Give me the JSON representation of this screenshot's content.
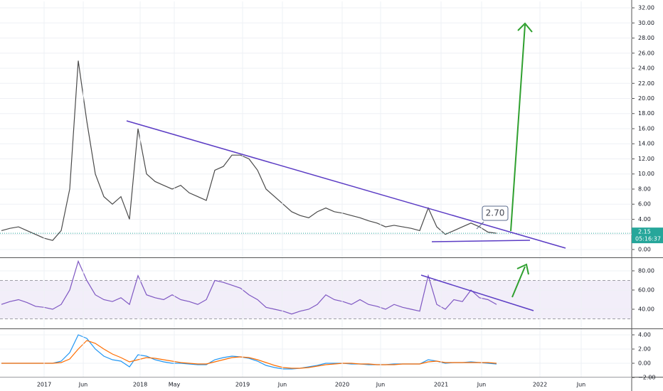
{
  "chart_data": [
    {
      "type": "line",
      "color": "#4a4a4a",
      "values": [
        2.5,
        2.8,
        3.0,
        2.5,
        2.0,
        1.5,
        1.2,
        2.5,
        8,
        25,
        17,
        10,
        7,
        6,
        7,
        4,
        16,
        10,
        9,
        8.5,
        8,
        8.5,
        7.5,
        7,
        6.5,
        10.5,
        11,
        12.5,
        12.5,
        12,
        10.5,
        8,
        7,
        6,
        5,
        4.5,
        4.2,
        5,
        5.5,
        5,
        4.8,
        4.5,
        4.2,
        3.8,
        3.5,
        3.0,
        3.2,
        3.0,
        2.8,
        2.5,
        5.5,
        3.0,
        2.0,
        2.5,
        3.0,
        3.5,
        3.0,
        2.3,
        2.15
      ],
      "ylim": [
        -1.04,
        32.85
      ],
      "yticks": [
        {
          "value": 0,
          "label": "0.00"
        },
        {
          "value": 2,
          "label": "2.00"
        },
        {
          "value": 4,
          "label": "4.00"
        },
        {
          "value": 6,
          "label": "6.00"
        },
        {
          "value": 8,
          "label": "8.00"
        },
        {
          "value": 10,
          "label": "10.00"
        },
        {
          "value": 12,
          "label": "12.00"
        },
        {
          "value": 14,
          "label": "14.00"
        },
        {
          "value": 16,
          "label": "16.00"
        },
        {
          "value": 18,
          "label": "18.00"
        },
        {
          "value": 20,
          "label": "20.00"
        },
        {
          "value": 22,
          "label": "22.00"
        },
        {
          "value": 24,
          "label": "24.00"
        },
        {
          "value": 26,
          "label": "26.00"
        },
        {
          "value": 28,
          "label": "28.00"
        },
        {
          "value": 30,
          "label": "30.00"
        },
        {
          "value": 32,
          "label": "32.00"
        }
      ],
      "grid": true,
      "last_price": {
        "value": 2.15,
        "label": "2.15"
      },
      "countdown": "05:16:37",
      "callout": "2.70"
    },
    {
      "type": "line",
      "color": "#7e57c2",
      "values": [
        45,
        48,
        50,
        47,
        43,
        42,
        40,
        45,
        60,
        90,
        70,
        55,
        50,
        48,
        52,
        45,
        75,
        55,
        52,
        50,
        55,
        50,
        48,
        45,
        50,
        70,
        68,
        65,
        62,
        55,
        50,
        42,
        40,
        38,
        35,
        38,
        40,
        45,
        55,
        50,
        48,
        45,
        50,
        45,
        43,
        40,
        45,
        42,
        40,
        38,
        75,
        45,
        40,
        50,
        48,
        60,
        52,
        50,
        45
      ],
      "ylim": [
        20,
        93.3
      ],
      "yticks": [
        {
          "value": 40,
          "label": "40.00"
        },
        {
          "value": 60,
          "label": "60.00"
        },
        {
          "value": 80,
          "label": "80.00"
        }
      ],
      "band": [
        30,
        70
      ],
      "grid": true
    },
    {
      "type": "line",
      "series": [
        {
          "color": "#2196f3",
          "values": [
            0,
            0,
            0,
            0,
            0,
            0,
            0,
            0.3,
            1.5,
            4.0,
            3.5,
            2.0,
            1.0,
            0.5,
            0.3,
            -0.5,
            1.2,
            1.0,
            0.5,
            0.2,
            0,
            0,
            -0.1,
            -0.2,
            -0.2,
            0.5,
            0.8,
            1.0,
            0.9,
            0.7,
            0.3,
            -0.3,
            -0.6,
            -0.8,
            -0.8,
            -0.7,
            -0.5,
            -0.3,
            0,
            0,
            0,
            -0.1,
            -0.1,
            -0.2,
            -0.2,
            -0.2,
            -0.1,
            -0.1,
            -0.1,
            -0.1,
            0.5,
            0.3,
            0,
            0.1,
            0.1,
            0.2,
            0.1,
            0,
            -0.1
          ]
        },
        {
          "color": "#ff6d00",
          "values": [
            0,
            0,
            0,
            0,
            0,
            0,
            0,
            0.1,
            0.6,
            2.0,
            3.2,
            2.8,
            2.0,
            1.3,
            0.8,
            0.2,
            0.5,
            0.8,
            0.7,
            0.5,
            0.3,
            0.1,
            0,
            -0.1,
            -0.1,
            0.2,
            0.5,
            0.8,
            0.9,
            0.8,
            0.5,
            0.1,
            -0.3,
            -0.6,
            -0.7,
            -0.7,
            -0.6,
            -0.4,
            -0.2,
            -0.1,
            0,
            0,
            -0.1,
            -0.1,
            -0.2,
            -0.2,
            -0.2,
            -0.1,
            -0.1,
            -0.1,
            0.2,
            0.3,
            0.1,
            0.1,
            0.1,
            0.1,
            0.1,
            0.1,
            0
          ]
        }
      ],
      "ylim": [
        -1.9,
        4.8
      ],
      "yticks": [
        {
          "value": -2,
          "label": "−2.00"
        },
        {
          "value": 0,
          "label": "0.00"
        },
        {
          "value": 2,
          "label": "2.00"
        },
        {
          "value": 4,
          "label": "4.00"
        }
      ],
      "grid": true,
      "time_axis": [
        "2017",
        "Jun",
        "2018",
        "May",
        "2019",
        "Jun",
        "2020",
        "Jun",
        "2021",
        "Jun",
        "2022",
        "Jun"
      ]
    }
  ]
}
